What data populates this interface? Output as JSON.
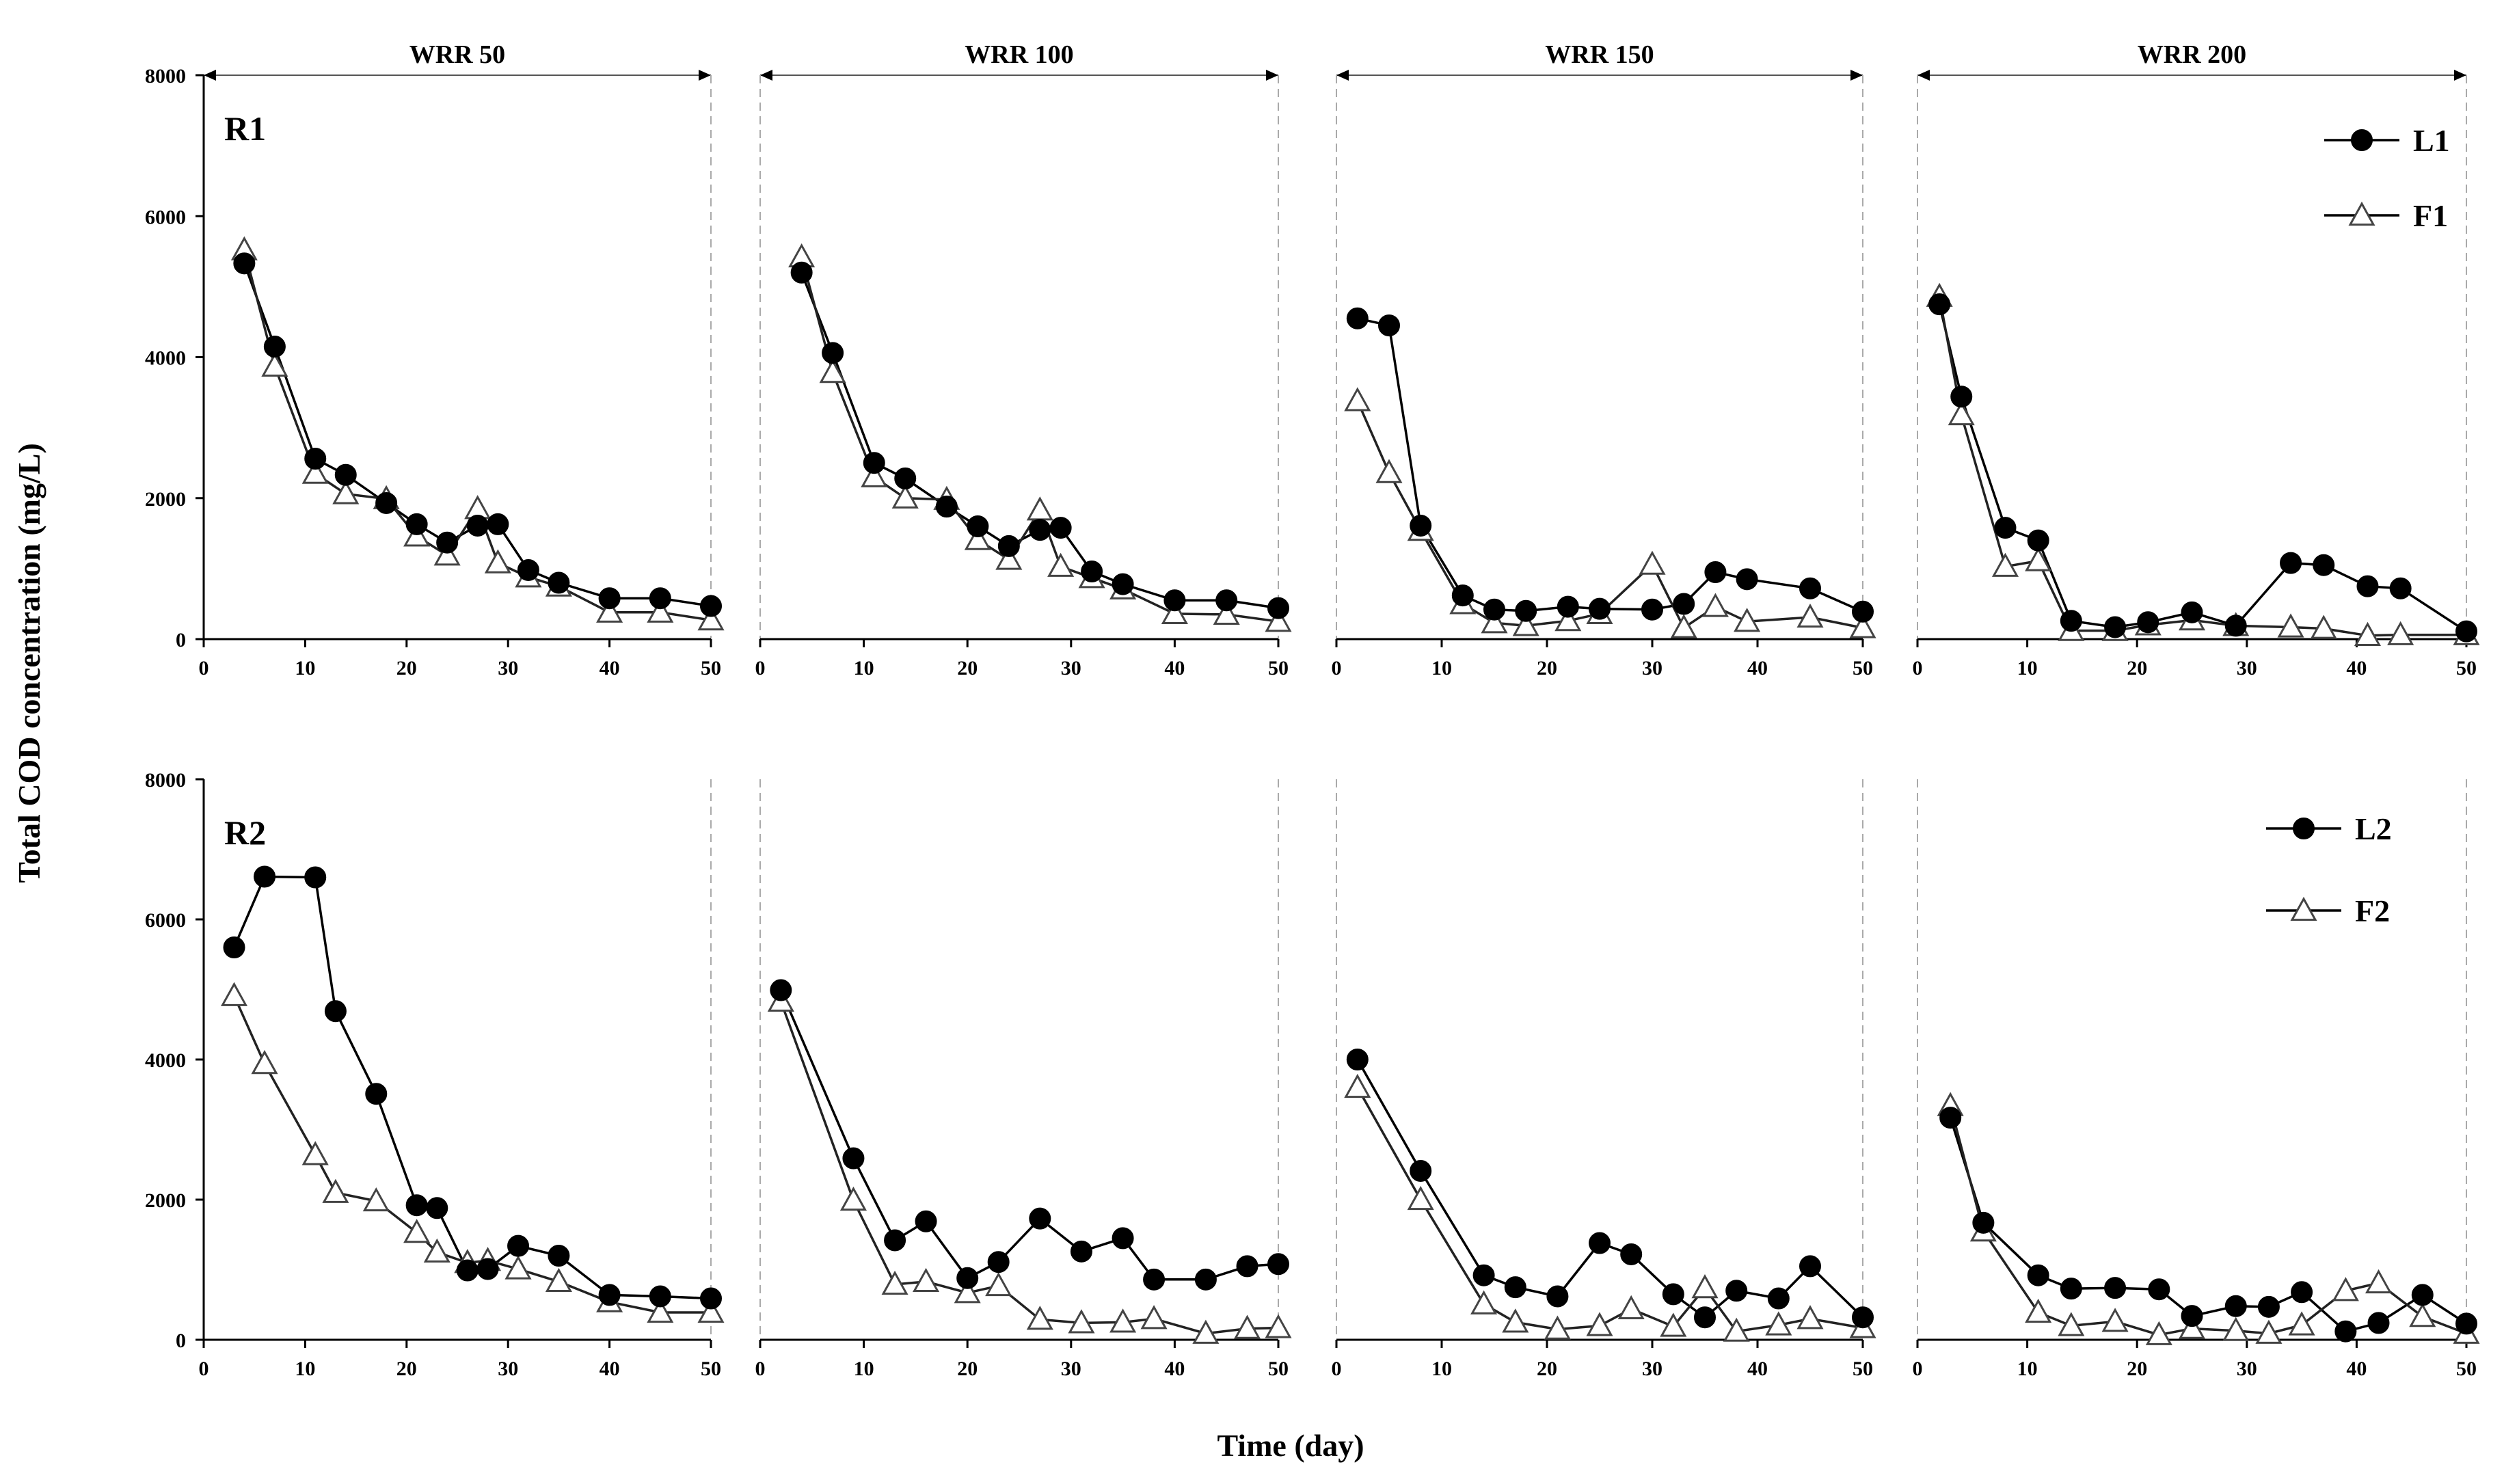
{
  "chart_data": {
    "type": "line",
    "ylabel": "Total COD concentration (mg/L)",
    "xlabel": "Time (day)",
    "xlim": [
      0,
      50
    ],
    "ylim": [
      0,
      8000
    ],
    "x_ticks": [
      0,
      10,
      20,
      30,
      40,
      50
    ],
    "y_ticks": [
      0,
      2000,
      4000,
      6000,
      8000
    ],
    "x_tick_labels": [
      "0",
      "10",
      "20",
      "30",
      "40",
      "50"
    ],
    "y_tick_labels": [
      "0",
      "2000",
      "4000",
      "6000",
      "8000"
    ],
    "phases": [
      "WRR 50",
      "WRR 100",
      "WRR 150",
      "WRR 200"
    ],
    "rows": [
      {
        "label": "R1",
        "legend": [
          {
            "name": "L1",
            "marker": "filled-circle"
          },
          {
            "name": "F1",
            "marker": "open-triangle"
          }
        ],
        "panels": [
          {
            "phase": "WRR 50",
            "series": [
              {
                "name": "L1",
                "x": [
                  4,
                  7,
                  11,
                  14,
                  18,
                  21,
                  24,
                  27,
                  29,
                  32,
                  35,
                  40,
                  45,
                  50
                ],
                "y": [
                  5330,
                  4150,
                  2560,
                  2330,
                  1930,
                  1630,
                  1370,
                  1610,
                  1630,
                  980,
                  800,
                  580,
                  580,
                  470
                ]
              },
              {
                "name": "F1",
                "x": [
                  4,
                  7,
                  11,
                  14,
                  18,
                  21,
                  24,
                  27,
                  29,
                  32,
                  35,
                  40,
                  45,
                  50
                ],
                "y": [
                  5520,
                  3870,
                  2350,
                  2060,
                  1990,
                  1460,
                  1190,
                  1850,
                  1080,
                  880,
                  750,
                  380,
                  380,
                  270
                ]
              }
            ]
          },
          {
            "phase": "WRR 100",
            "series": [
              {
                "name": "L1",
                "x": [
                  4,
                  7,
                  11,
                  14,
                  18,
                  21,
                  24,
                  27,
                  29,
                  32,
                  35,
                  40,
                  45,
                  50
                ],
                "y": [
                  5200,
                  4060,
                  2500,
                  2280,
                  1880,
                  1600,
                  1320,
                  1550,
                  1580,
                  960,
                  780,
                  550,
                  550,
                  440
                ]
              },
              {
                "name": "F1",
                "x": [
                  4,
                  7,
                  11,
                  14,
                  18,
                  21,
                  24,
                  27,
                  29,
                  32,
                  35,
                  40,
                  45,
                  50
                ],
                "y": [
                  5420,
                  3780,
                  2300,
                  2000,
                  1980,
                  1410,
                  1130,
                  1830,
                  1030,
                  870,
                  710,
                  360,
                  350,
                  250
                ]
              }
            ]
          },
          {
            "phase": "WRR 150",
            "series": [
              {
                "name": "L1",
                "x": [
                  2,
                  5,
                  8,
                  12,
                  15,
                  18,
                  22,
                  25,
                  30,
                  33,
                  36,
                  39,
                  45,
                  50
                ],
                "y": [
                  4550,
                  4450,
                  1610,
                  620,
                  420,
                  400,
                  460,
                  430,
                  420,
                  500,
                  950,
                  850,
                  720,
                  390
                ]
              },
              {
                "name": "F1",
                "x": [
                  2,
                  5,
                  8,
                  12,
                  15,
                  18,
                  22,
                  25,
                  30,
                  33,
                  36,
                  39,
                  45,
                  50
                ],
                "y": [
                  3380,
                  2360,
                  1540,
                  500,
                  230,
                  190,
                  260,
                  360,
                  1060,
                  160,
                  460,
                  250,
                  310,
                  160
                ]
              }
            ]
          },
          {
            "phase": "WRR 200",
            "series": [
              {
                "name": "L1",
                "x": [
                  2,
                  4,
                  8,
                  11,
                  14,
                  18,
                  21,
                  25,
                  29,
                  34,
                  37,
                  41,
                  44,
                  50
                ],
                "y": [
                  4750,
                  3440,
                  1580,
                  1400,
                  260,
                  170,
                  240,
                  380,
                  190,
                  1080,
                  1050,
                  750,
                  720,
                  110
                ]
              },
              {
                "name": "F1",
                "x": [
                  2,
                  4,
                  8,
                  11,
                  14,
                  18,
                  21,
                  25,
                  29,
                  34,
                  37,
                  41,
                  44,
                  50
                ],
                "y": [
                  4860,
                  3180,
                  1030,
                  1110,
                  120,
                  120,
                  200,
                  270,
                  190,
                  170,
                  150,
                  50,
                  60,
                  60
                ]
              }
            ]
          }
        ]
      },
      {
        "label": "R2",
        "legend": [
          {
            "name": "L2",
            "marker": "filled-circle"
          },
          {
            "name": "F2",
            "marker": "open-triangle"
          }
        ],
        "panels": [
          {
            "phase": "WRR 50",
            "series": [
              {
                "name": "L2",
                "x": [
                  3,
                  6,
                  11,
                  13,
                  17,
                  21,
                  23,
                  26,
                  28,
                  31,
                  35,
                  40,
                  45,
                  50
                ],
                "y": [
                  5600,
                  6610,
                  6600,
                  4690,
                  3510,
                  1920,
                  1880,
                  990,
                  1010,
                  1340,
                  1200,
                  640,
                  620,
                  590
                ]
              },
              {
                "name": "F2",
                "x": [
                  3,
                  6,
                  11,
                  13,
                  17,
                  21,
                  23,
                  26,
                  28,
                  31,
                  35,
                  40,
                  45,
                  50
                ],
                "y": [
                  4910,
                  3940,
                  2640,
                  2100,
                  1980,
                  1530,
                  1250,
                  1100,
                  1130,
                  1010,
                  830,
                  540,
                  390,
                  390
                ]
              }
            ]
          },
          {
            "phase": "WRR 100",
            "series": [
              {
                "name": "L2",
                "x": [
                  2,
                  9,
                  13,
                  16,
                  20,
                  23,
                  27,
                  31,
                  35,
                  38,
                  43,
                  47,
                  50
                ],
                "y": [
                  4990,
                  2590,
                  1420,
                  1690,
                  880,
                  1110,
                  1730,
                  1260,
                  1450,
                  860,
                  860,
                  1050,
                  1080
                ]
              },
              {
                "name": "F2",
                "x": [
                  2,
                  9,
                  13,
                  16,
                  20,
                  23,
                  27,
                  31,
                  35,
                  38,
                  43,
                  47,
                  50
                ],
                "y": [
                  4830,
                  1990,
                  790,
                  830,
                  670,
                  770,
                  290,
                  240,
                  250,
                  300,
                  90,
                  160,
                  170
                ]
              }
            ]
          },
          {
            "phase": "WRR 150",
            "series": [
              {
                "name": "L2",
                "x": [
                  2,
                  8,
                  14,
                  17,
                  21,
                  25,
                  28,
                  32,
                  35,
                  38,
                  42,
                  45,
                  50
                ],
                "y": [
                  4000,
                  2410,
                  920,
                  750,
                  620,
                  1380,
                  1220,
                  650,
                  320,
                  700,
                  590,
                  1050,
                  320
                ]
              },
              {
                "name": "F2",
                "x": [
                  2,
                  8,
                  14,
                  17,
                  21,
                  25,
                  28,
                  32,
                  35,
                  38,
                  42,
                  45,
                  50
                ],
                "y": [
                  3600,
                  2000,
                  510,
                  250,
                  150,
                  200,
                  440,
                  190,
                  740,
                  120,
                  210,
                  300,
                  170
                ]
              }
            ]
          },
          {
            "phase": "WRR 200",
            "series": [
              {
                "name": "L2",
                "x": [
                  3,
                  6,
                  11,
                  14,
                  18,
                  22,
                  25,
                  29,
                  32,
                  35,
                  39,
                  42,
                  46,
                  50
                ],
                "y": [
                  3170,
                  1670,
                  920,
                  730,
                  740,
                  720,
                  340,
                  480,
                  470,
                  680,
                  120,
                  240,
                  640,
                  230
                ]
              },
              {
                "name": "F2",
                "x": [
                  3,
                  6,
                  11,
                  14,
                  18,
                  22,
                  25,
                  29,
                  32,
                  35,
                  39,
                  42,
                  46,
                  50
                ],
                "y": [
                  3340,
                  1550,
                  390,
                  200,
                  260,
                  70,
                  160,
                  130,
                  90,
                  210,
                  700,
                  810,
                  330,
                  90
                ]
              }
            ]
          }
        ]
      }
    ]
  }
}
